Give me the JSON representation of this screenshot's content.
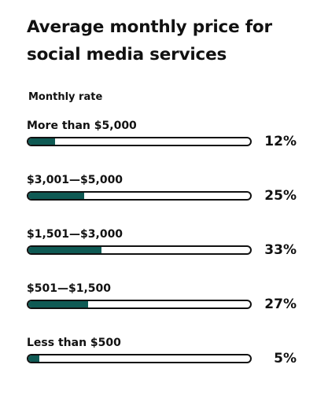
{
  "colors": {
    "fill": "#0f5a54",
    "outline": "#111111",
    "background": "#ffffff"
  },
  "chart_data": {
    "type": "bar",
    "title": "Average monthly price for social media services",
    "subtitle": "Monthly rate",
    "categories": [
      "More than $5,000",
      "$3,001—$5,000",
      "$1,501—$3,000",
      "$501—$1,500",
      "Less than $500"
    ],
    "values": [
      12,
      25,
      33,
      27,
      5
    ],
    "value_labels": [
      "12%",
      "25%",
      "33%",
      "27%",
      "5%"
    ],
    "unit": "%",
    "xlim": [
      0,
      100
    ]
  }
}
